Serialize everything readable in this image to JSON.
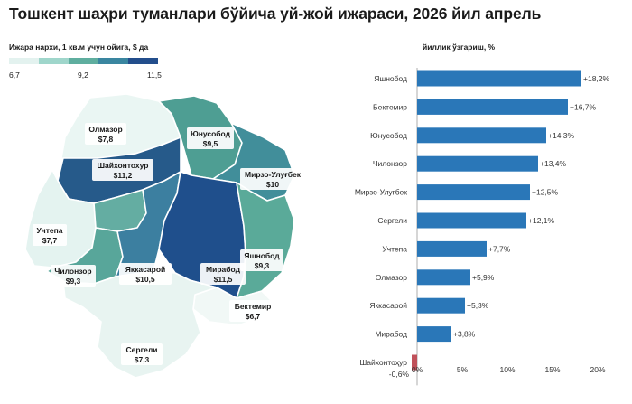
{
  "page": {
    "title": "Тошкент шаҳри туманлари бўйича уй-жой ижараси, 2026 йил апрель"
  },
  "map": {
    "legend_title": "Ижара нархи, 1 кв.м учун ойига, $ да",
    "legend_ticks": [
      "6,7",
      "9,2",
      "11,5"
    ],
    "legend_colors": [
      "#e3f2ef",
      "#9fd6cb",
      "#5fae9f",
      "#3a86a0",
      "#234e8c"
    ],
    "districts": [
      {
        "id": "olmazor",
        "name": "Олмазор",
        "value": "$7,8",
        "color": "#eaf6f3"
      },
      {
        "id": "yunusobod",
        "name": "Юнусобод",
        "value": "$9,5",
        "color": "#4e9e93"
      },
      {
        "id": "shayxontoxur",
        "name": "Шайхонтохур",
        "value": "$11,2",
        "color": "#265a8a"
      },
      {
        "id": "mirzo",
        "name": "Мирзо-Улуғбек",
        "value": "$10",
        "color": "#418e9a"
      },
      {
        "id": "uchtepa",
        "name": "Учтепа",
        "value": "$7,7",
        "color": "#e4f3f0"
      },
      {
        "id": "chilonzor",
        "name": "Чилонзор",
        "value": "$9,3",
        "color": "#58a69a"
      },
      {
        "id": "yakkasaroy",
        "name": "Яккасарой",
        "value": "$10,5",
        "color": "#3c7fa0"
      },
      {
        "id": "mirobod",
        "name": "Мирабод",
        "value": "$11,5",
        "color": "#1f4f8c"
      },
      {
        "id": "yashnobod",
        "name": "Яшнобод",
        "value": "$9,3",
        "color": "#5aaa99"
      },
      {
        "id": "bektemir",
        "name": "Бектемир",
        "value": "$6,7",
        "color": "#f1f8f6"
      },
      {
        "id": "sergeli",
        "name": "Сергели",
        "value": "$7,3",
        "color": "#e8f4f1"
      },
      {
        "id": "center",
        "name": "",
        "value": "",
        "color": "#64ada2"
      }
    ]
  },
  "chart_data": {
    "type": "bar",
    "orientation": "horizontal",
    "title": "йиллик ўзгариш, %",
    "categories": [
      "Яшнобод",
      "Бектемир",
      "Юнусобод",
      "Чилонзор",
      "Мирзо-Улуғбек",
      "Сергели",
      "Учтепа",
      "Олмазор",
      "Яккасарой",
      "Мирабод",
      "Шайхонтоҳур"
    ],
    "values": [
      18.2,
      16.7,
      14.3,
      13.4,
      12.5,
      12.1,
      7.7,
      5.9,
      5.3,
      3.8,
      -0.6
    ],
    "value_labels": [
      "+18,2%",
      "+16,7%",
      "+14,3%",
      "+13,4%",
      "+12,5%",
      "+12,1%",
      "+7,7%",
      "+5,9%",
      "+5,3%",
      "+3,8%",
      "-0,6%"
    ],
    "xlim": [
      -1,
      21
    ],
    "xticks": [
      0,
      5,
      10,
      15,
      20
    ],
    "xtick_labels": [
      "0%",
      "5%",
      "10%",
      "15%",
      "20%"
    ],
    "positive_color": "#2a77b8",
    "negative_color": "#c0515a",
    "grid": false
  }
}
